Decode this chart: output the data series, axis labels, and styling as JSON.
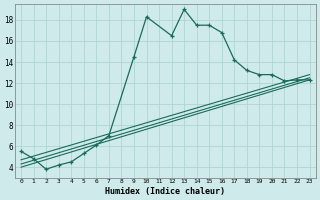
{
  "xlabel": "Humidex (Indice chaleur)",
  "background_color": "#ceeaea",
  "grid_color": "#b0d4d4",
  "line_color": "#1a6b5a",
  "xlim": [
    -0.5,
    23.5
  ],
  "ylim": [
    3.0,
    19.5
  ],
  "x_ticks": [
    0,
    1,
    2,
    3,
    4,
    5,
    6,
    7,
    8,
    9,
    10,
    11,
    12,
    13,
    14,
    15,
    16,
    17,
    18,
    19,
    20,
    21,
    22,
    23
  ],
  "y_ticks": [
    4,
    6,
    8,
    10,
    12,
    14,
    16,
    18
  ],
  "series_main": {
    "x": [
      0,
      1,
      2,
      3,
      4,
      5,
      6,
      7,
      9,
      10,
      12,
      13,
      14,
      15,
      16,
      17,
      18,
      19,
      20,
      21,
      22,
      23
    ],
    "y": [
      5.5,
      4.8,
      3.8,
      4.2,
      4.5,
      5.3,
      6.1,
      7.0,
      14.5,
      18.3,
      16.5,
      19.0,
      17.5,
      17.5,
      16.8,
      14.2,
      13.2,
      12.8,
      12.8,
      12.2,
      12.3,
      12.3
    ]
  },
  "series_lines": [
    {
      "x": [
        0,
        23
      ],
      "y": [
        4.0,
        12.3
      ]
    },
    {
      "x": [
        0,
        23
      ],
      "y": [
        4.3,
        12.5
      ]
    },
    {
      "x": [
        0,
        23
      ],
      "y": [
        4.7,
        12.8
      ]
    }
  ]
}
